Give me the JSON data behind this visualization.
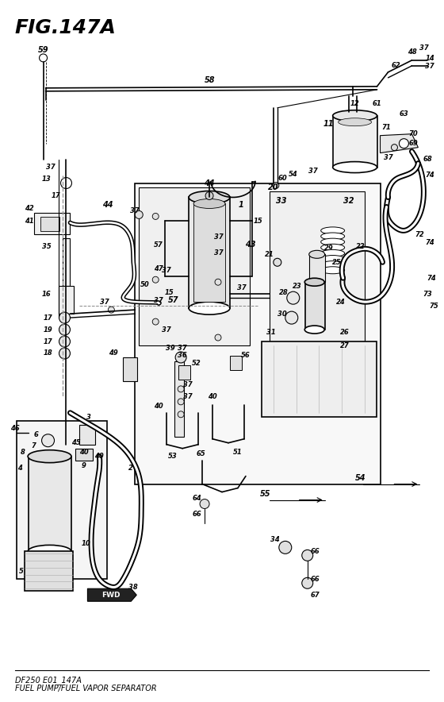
{
  "title": "FIG.147A",
  "subtitle1": "DF250 E01_147A",
  "subtitle2": "FUEL PUMP/FUEL VAPOR SEPARATOR",
  "bg_color": "#ffffff",
  "line_color": "#000000",
  "fig_width": 5.6,
  "fig_height": 8.84,
  "dpi": 100
}
